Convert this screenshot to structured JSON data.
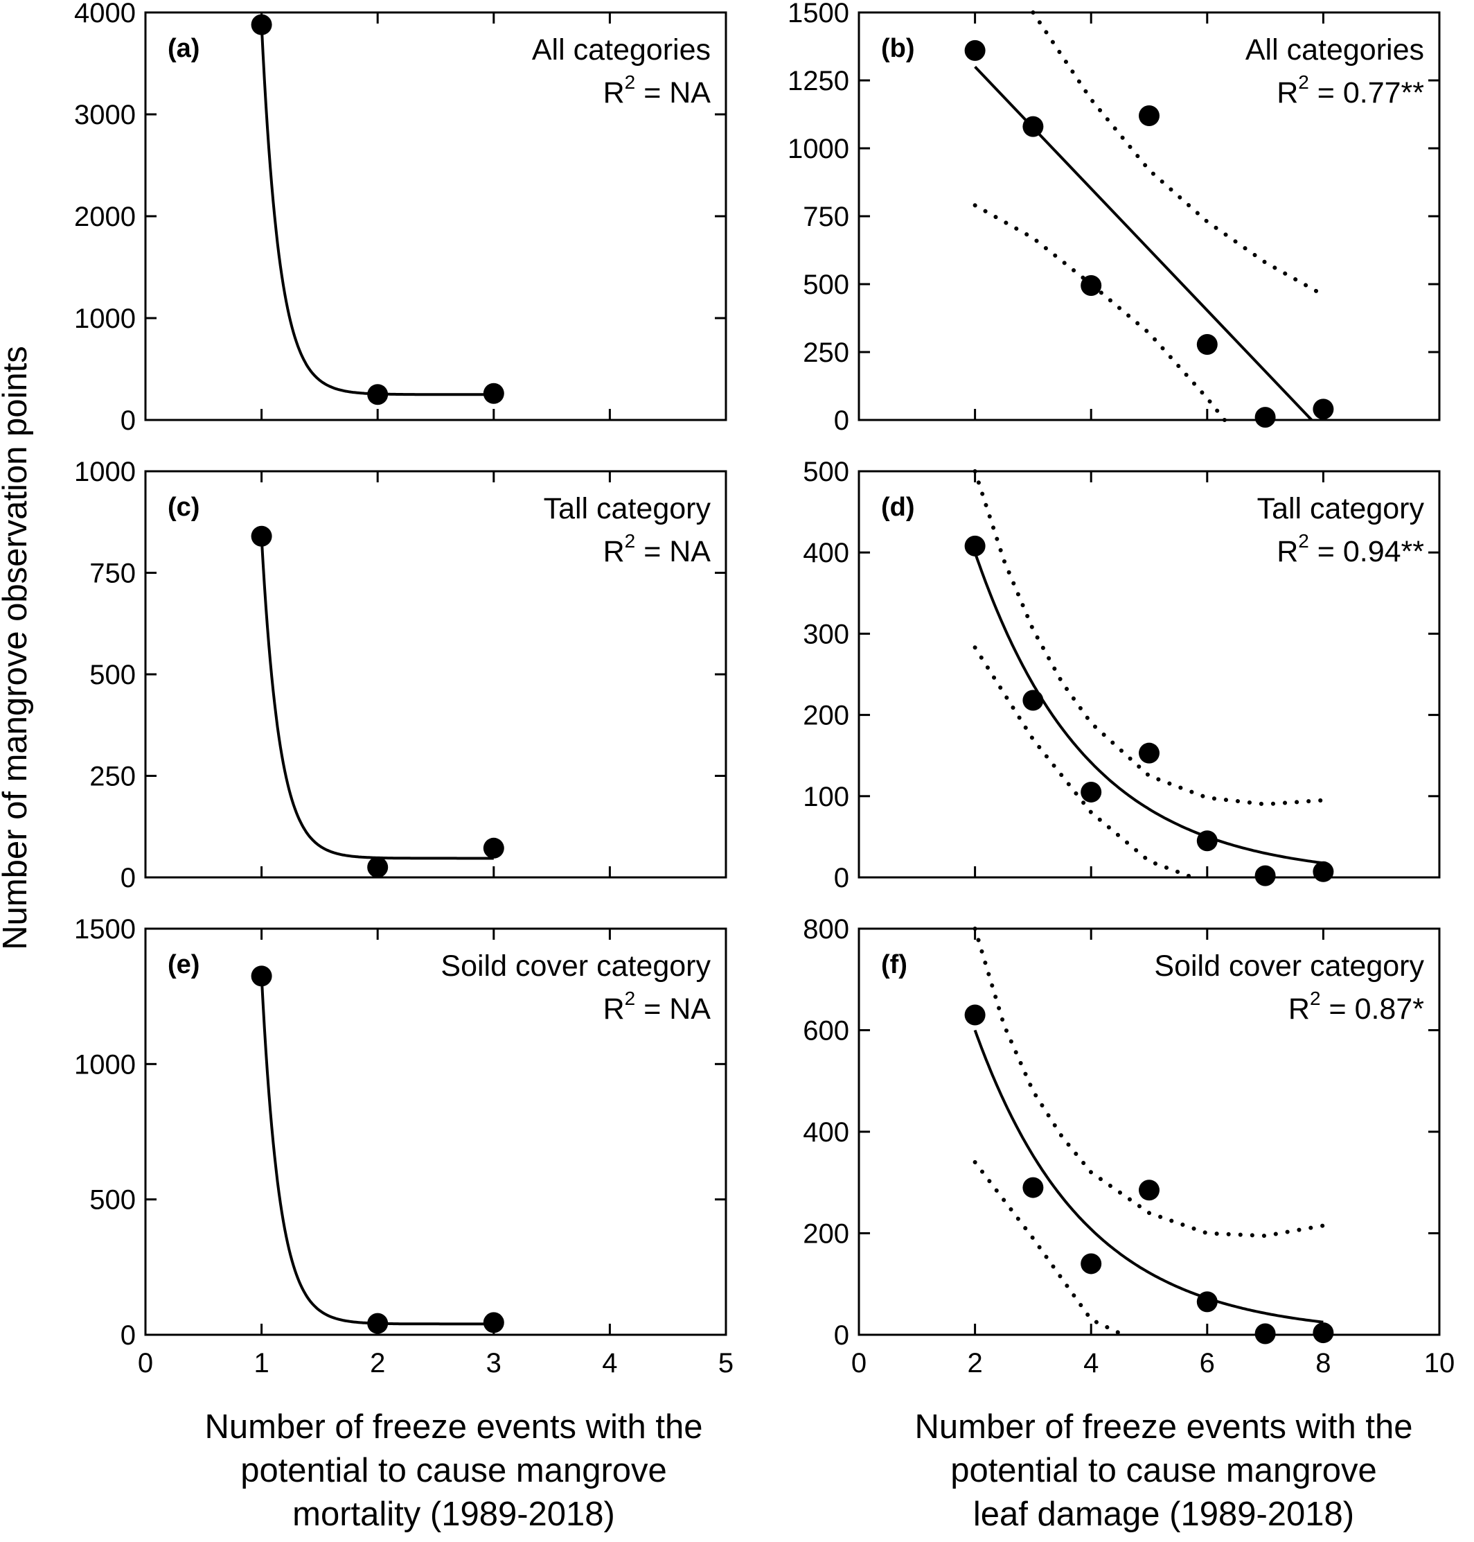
{
  "chart_data": {
    "ylabel": "Number of mangrove observation points",
    "xlabel_left": [
      "Number of freeze events with the",
      "potential to cause mangrove",
      "mortality (1989-2018)"
    ],
    "xlabel_right": [
      "Number of freeze events with the",
      "potential to cause mangrove",
      "leaf damage (1989-2018)"
    ],
    "panels": [
      {
        "id": "a",
        "letter": "(a)",
        "type": "scatter",
        "category": "All categories",
        "r2_label": "R",
        "r2_value": " = NA",
        "xlim": [
          0,
          5
        ],
        "xticks": [
          0,
          1,
          2,
          3,
          4,
          5
        ],
        "ylim": [
          0,
          4000
        ],
        "yticks": [
          0,
          1000,
          2000,
          3000,
          4000
        ],
        "points": [
          [
            1,
            3880
          ],
          [
            2,
            250
          ],
          [
            3,
            260
          ]
        ],
        "fit": {
          "type": "exp_decay",
          "A": 3630,
          "k": 6.5,
          "c": 250,
          "x": [
            1,
            3
          ]
        }
      },
      {
        "id": "b",
        "letter": "(b)",
        "type": "scatter",
        "category": "All categories",
        "r2_label": "R",
        "r2_value": " = 0.77**",
        "xlim": [
          0,
          10
        ],
        "xticks": [
          0,
          2,
          4,
          6,
          8,
          10
        ],
        "ylim": [
          0,
          1500
        ],
        "yticks": [
          0,
          250,
          500,
          750,
          1000,
          1250,
          1500
        ],
        "points": [
          [
            2,
            1360
          ],
          [
            3,
            1080
          ],
          [
            4,
            495
          ],
          [
            5,
            1120
          ],
          [
            6,
            278
          ],
          [
            7,
            10
          ],
          [
            8,
            40
          ]
        ],
        "fit": {
          "type": "linear",
          "x": [
            2,
            7.8
          ],
          "y": [
            1300,
            0
          ]
        },
        "ci_upper": [
          [
            3,
            1500
          ],
          [
            4,
            1180
          ],
          [
            5,
            920
          ],
          [
            6,
            730
          ],
          [
            7,
            580
          ],
          [
            8,
            460
          ]
        ],
        "ci_lower": [
          [
            2,
            790
          ],
          [
            3,
            670
          ],
          [
            4,
            500
          ],
          [
            5,
            320
          ],
          [
            6,
            80
          ],
          [
            6.3,
            0
          ]
        ]
      },
      {
        "id": "c",
        "letter": "(c)",
        "type": "scatter",
        "category": "Tall category",
        "r2_label": "R",
        "r2_value": " = NA",
        "xlim": [
          0,
          5
        ],
        "xticks": [
          0,
          1,
          2,
          3,
          4,
          5
        ],
        "ylim": [
          0,
          1000
        ],
        "yticks": [
          0,
          250,
          500,
          750,
          1000
        ],
        "points": [
          [
            1,
            840
          ],
          [
            2,
            25
          ],
          [
            3,
            72
          ]
        ],
        "fit": {
          "type": "exp_decay",
          "A": 790,
          "k": 6.5,
          "c": 47,
          "x": [
            1,
            3
          ]
        }
      },
      {
        "id": "d",
        "letter": "(d)",
        "type": "scatter",
        "category": "Tall category",
        "r2_label": "R",
        "r2_value": " = 0.94**",
        "xlim": [
          0,
          10
        ],
        "xticks": [
          0,
          2,
          4,
          6,
          8,
          10
        ],
        "ylim": [
          0,
          500
        ],
        "yticks": [
          0,
          100,
          200,
          300,
          400,
          500
        ],
        "points": [
          [
            2,
            408
          ],
          [
            3,
            218
          ],
          [
            4,
            105
          ],
          [
            5,
            153
          ],
          [
            6,
            45
          ],
          [
            7,
            2
          ],
          [
            8,
            7
          ]
        ],
        "fit": {
          "type": "exp_decay",
          "A": 400,
          "k": 0.52,
          "c": 0,
          "x": [
            2,
            8
          ]
        },
        "ci_upper": [
          [
            2,
            500
          ],
          [
            2.5,
            390
          ],
          [
            3,
            305
          ],
          [
            3.5,
            240
          ],
          [
            4,
            190
          ],
          [
            5,
            125
          ],
          [
            6,
            98
          ],
          [
            7,
            90
          ],
          [
            8,
            95
          ]
        ],
        "ci_lower": [
          [
            2,
            283
          ],
          [
            3,
            170
          ],
          [
            4,
            80
          ],
          [
            5,
            20
          ],
          [
            5.75,
            0
          ]
        ]
      },
      {
        "id": "e",
        "letter": "(e)",
        "type": "scatter",
        "category": "Soild cover category",
        "r2_label": "R",
        "r2_value": " = NA",
        "xlim": [
          0,
          5
        ],
        "xticks": [
          0,
          1,
          2,
          3,
          4,
          5
        ],
        "ylim": [
          0,
          1500
        ],
        "yticks": [
          0,
          500,
          1000,
          1500
        ],
        "points": [
          [
            1,
            1325
          ],
          [
            2,
            42
          ],
          [
            3,
            45
          ]
        ],
        "fit": {
          "type": "exp_decay",
          "A": 1285,
          "k": 6.5,
          "c": 40,
          "x": [
            1,
            3
          ]
        }
      },
      {
        "id": "f",
        "letter": "(f)",
        "type": "scatter",
        "category": "Soild cover category",
        "r2_label": "R",
        "r2_value": " = 0.87*",
        "xlim": [
          0,
          10
        ],
        "xticks": [
          0,
          2,
          4,
          6,
          8,
          10
        ],
        "ylim": [
          0,
          800
        ],
        "yticks": [
          0,
          200,
          400,
          600,
          800
        ],
        "points": [
          [
            2,
            630
          ],
          [
            3,
            290
          ],
          [
            4,
            140
          ],
          [
            5,
            285
          ],
          [
            6,
            65
          ],
          [
            7,
            2
          ],
          [
            8,
            4
          ]
        ],
        "fit": {
          "type": "exp_decay",
          "A": 600,
          "k": 0.53,
          "c": 0,
          "x": [
            2,
            8
          ]
        },
        "ci_upper": [
          [
            2,
            800
          ],
          [
            2.5,
            610
          ],
          [
            3,
            480
          ],
          [
            3.5,
            390
          ],
          [
            4,
            320
          ],
          [
            5,
            240
          ],
          [
            6,
            200
          ],
          [
            7,
            195
          ],
          [
            8,
            215
          ]
        ],
        "ci_lower": [
          [
            2,
            340
          ],
          [
            3,
            190
          ],
          [
            4,
            30
          ],
          [
            4.55,
            0
          ]
        ]
      }
    ]
  }
}
